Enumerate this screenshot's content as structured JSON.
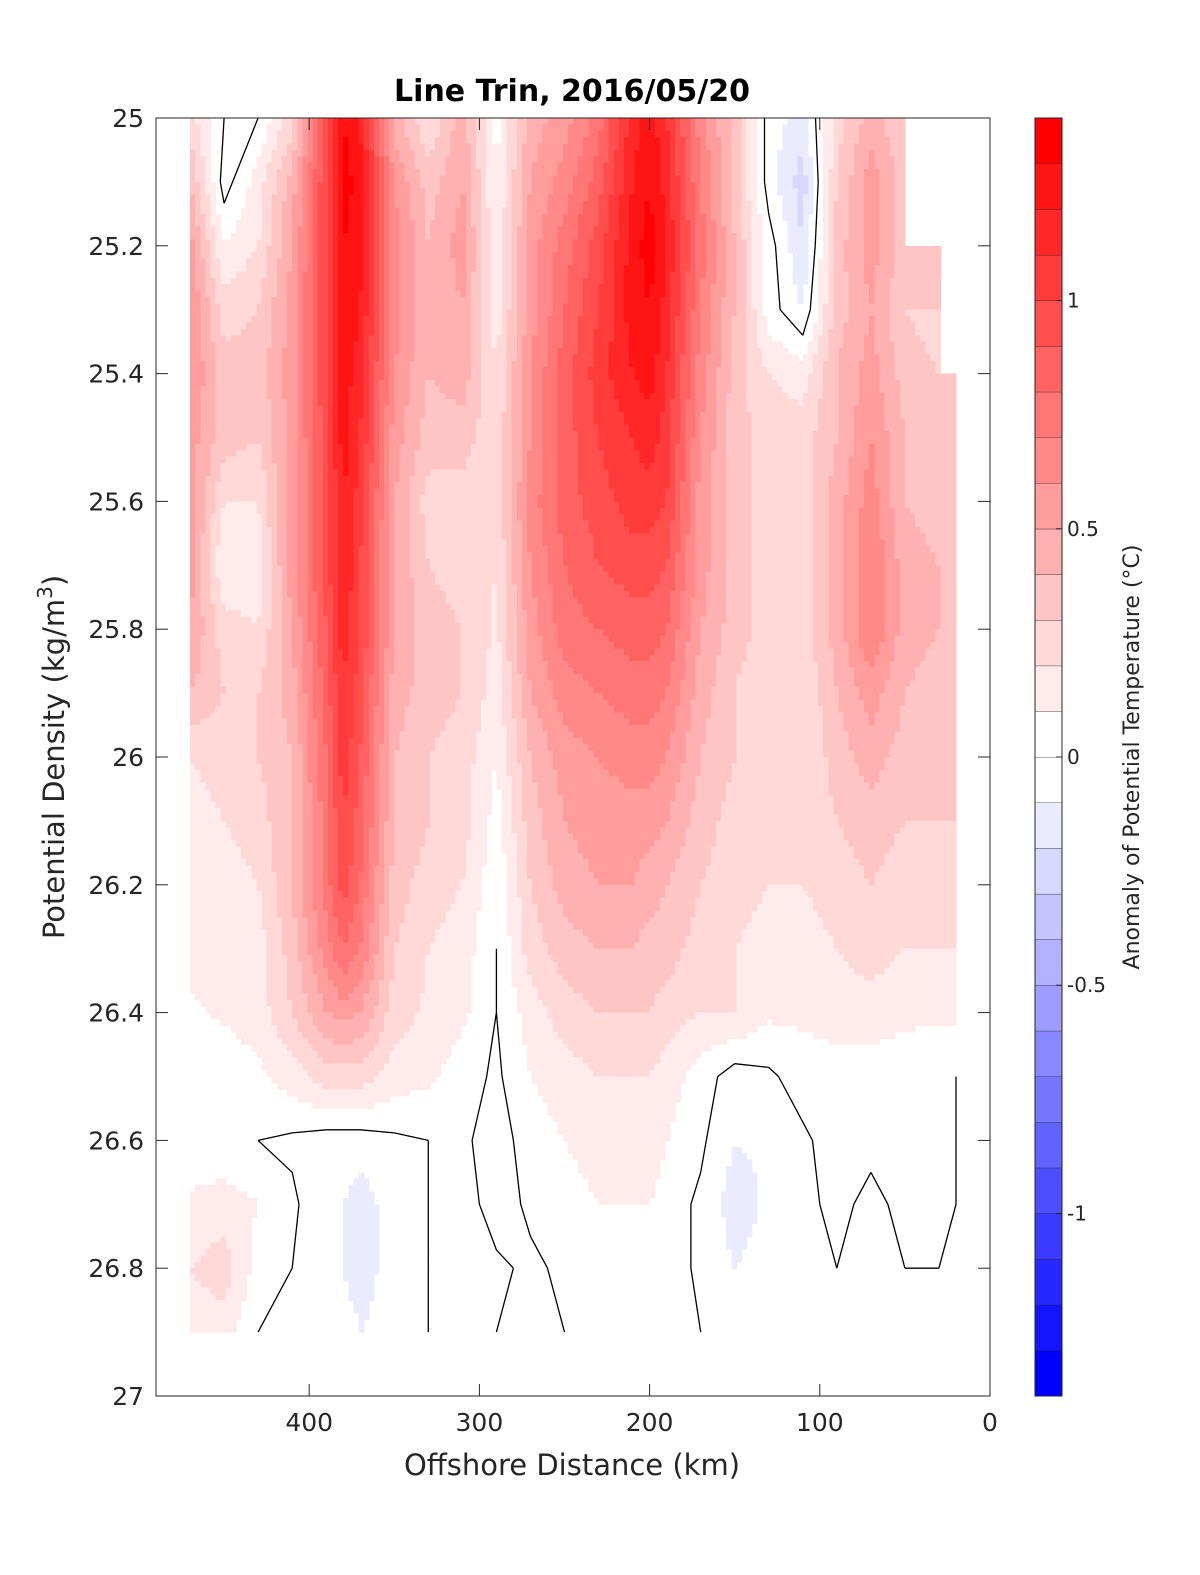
{
  "chart_data": {
    "type": "heatmap",
    "title": "Line Trin, 2016/05/20",
    "xlabel": "Offshore Distance (km)",
    "ylabel": "Potential Density (kg/m",
    "ylabel_sup": "3",
    "ylabel_end": ")",
    "colorbar_label": "Anomaly of Potential Temperature (°C)",
    "xlim": [
      490,
      0
    ],
    "x_reversed": true,
    "ylim": [
      25,
      27
    ],
    "y_reversed": true,
    "x_ticks": [
      400,
      300,
      200,
      100,
      0
    ],
    "x_tick_labels": [
      "400",
      "300",
      "200",
      "100",
      "0"
    ],
    "y_ticks": [
      25,
      25.2,
      25.4,
      25.6,
      25.8,
      26,
      26.2,
      26.4,
      26.6,
      26.8,
      27
    ],
    "y_tick_labels": [
      "25",
      "25.2",
      "25.4",
      "25.6",
      "25.8",
      "26",
      "26.2",
      "26.4",
      "26.6",
      "26.8",
      "27"
    ],
    "colorbar_range": [
      -1.4,
      1.4
    ],
    "colorbar_levels": 28,
    "colorbar_ticks": [
      1,
      0.5,
      0,
      -0.5,
      -1
    ],
    "colorbar_tick_labels": [
      "1",
      "0.5",
      "0",
      "-0.5",
      "-1"
    ],
    "colormap": {
      "negative": "#0000ff",
      "zero": "#ffffff",
      "positive": "#ff0000"
    },
    "zero_contour_color": "#000000",
    "grid": false,
    "data_x_range": [
      470,
      20
    ],
    "data_y_range": [
      25,
      26.9
    ],
    "field_x": [
      470,
      450,
      430,
      410,
      390,
      380,
      370,
      350,
      330,
      310,
      290,
      270,
      250,
      230,
      210,
      200,
      190,
      170,
      150,
      130,
      110,
      90,
      70,
      50,
      30,
      20
    ],
    "field_y": [
      25.0,
      25.1,
      25.2,
      25.3,
      25.4,
      25.5,
      25.6,
      25.7,
      25.8,
      25.9,
      26.0,
      26.1,
      26.2,
      26.3,
      26.4,
      26.5,
      26.6,
      26.7,
      26.8,
      26.9
    ],
    "field_values": [
      [
        0.25,
        0.0,
        0.0,
        0.25,
        0.95,
        1.3,
        1.2,
        0.45,
        0.2,
        0.45,
        0.05,
        0.45,
        0.55,
        0.75,
        1.15,
        1.25,
        1.1,
        0.65,
        0.35,
        -0.05,
        -0.15,
        0.25,
        0.45,
        0.3,
        null,
        null
      ],
      [
        0.4,
        -0.05,
        0.15,
        0.45,
        1.0,
        1.35,
        1.25,
        0.6,
        0.35,
        0.5,
        0.1,
        0.5,
        0.65,
        0.85,
        1.2,
        1.3,
        1.15,
        0.7,
        0.35,
        -0.05,
        -0.25,
        0.3,
        0.55,
        0.35,
        null,
        null
      ],
      [
        0.55,
        0.1,
        0.2,
        0.5,
        1.0,
        1.3,
        1.25,
        0.65,
        0.4,
        0.55,
        0.12,
        0.55,
        0.75,
        0.95,
        1.25,
        1.35,
        1.2,
        0.75,
        0.4,
        0.05,
        -0.2,
        0.35,
        0.55,
        0.35,
        null,
        null
      ],
      [
        0.6,
        0.25,
        0.3,
        0.55,
        1.0,
        1.3,
        1.2,
        0.65,
        0.4,
        0.5,
        0.15,
        0.55,
        0.8,
        1.0,
        1.25,
        1.3,
        1.15,
        0.7,
        0.4,
        0.05,
        -0.1,
        0.35,
        0.5,
        0.3,
        0.25,
        null
      ],
      [
        0.6,
        0.35,
        0.35,
        0.55,
        1.0,
        1.25,
        1.15,
        0.6,
        0.4,
        0.45,
        0.2,
        0.6,
        0.85,
        1.05,
        1.2,
        1.25,
        1.1,
        0.65,
        0.35,
        0.2,
        0.15,
        0.4,
        0.55,
        0.35,
        0.3,
        null
      ],
      [
        0.55,
        0.35,
        0.3,
        0.55,
        0.95,
        1.25,
        1.1,
        0.55,
        0.35,
        0.35,
        0.22,
        0.6,
        0.85,
        1.0,
        1.1,
        1.15,
        1.05,
        0.6,
        0.35,
        0.25,
        0.25,
        0.4,
        0.6,
        0.4,
        0.35,
        0.3
      ],
      [
        0.55,
        0.2,
        0.2,
        0.55,
        0.95,
        1.2,
        1.05,
        0.5,
        0.25,
        0.25,
        0.22,
        0.65,
        0.85,
        0.95,
        1.05,
        1.05,
        1.0,
        0.55,
        0.35,
        0.25,
        0.25,
        0.45,
        0.65,
        0.4,
        0.35,
        0.35
      ],
      [
        0.55,
        0.1,
        0.15,
        0.55,
        0.95,
        1.2,
        1.0,
        0.5,
        0.3,
        0.25,
        0.2,
        0.6,
        0.8,
        0.9,
        0.95,
        0.95,
        0.9,
        0.55,
        0.35,
        0.25,
        0.25,
        0.45,
        0.7,
        0.45,
        0.4,
        0.35
      ],
      [
        0.5,
        0.25,
        0.2,
        0.5,
        0.9,
        1.15,
        1.0,
        0.5,
        0.35,
        0.3,
        0.18,
        0.55,
        0.75,
        0.8,
        0.85,
        0.85,
        0.8,
        0.5,
        0.35,
        0.25,
        0.25,
        0.45,
        0.7,
        0.45,
        0.4,
        0.35
      ],
      [
        0.4,
        0.3,
        0.3,
        0.45,
        0.85,
        1.1,
        0.95,
        0.45,
        0.35,
        0.3,
        0.15,
        0.5,
        0.65,
        0.7,
        0.75,
        0.75,
        0.7,
        0.45,
        0.3,
        0.2,
        0.2,
        0.4,
        0.55,
        0.4,
        0.35,
        0.3
      ],
      [
        0.2,
        0.25,
        0.3,
        0.4,
        0.8,
        1.05,
        0.9,
        0.4,
        0.3,
        0.25,
        0.1,
        0.4,
        0.55,
        0.6,
        0.65,
        0.65,
        0.6,
        0.4,
        0.3,
        0.2,
        0.2,
        0.35,
        0.45,
        0.35,
        0.3,
        0.3
      ],
      [
        0.15,
        0.2,
        0.25,
        0.4,
        0.75,
        1.0,
        0.85,
        0.4,
        0.3,
        0.25,
        0.05,
        0.35,
        0.5,
        0.55,
        0.55,
        0.55,
        0.5,
        0.35,
        0.25,
        0.2,
        0.2,
        0.3,
        0.35,
        0.3,
        0.3,
        0.3
      ],
      [
        0.15,
        0.15,
        0.2,
        0.4,
        0.75,
        0.95,
        0.8,
        0.35,
        0.25,
        0.2,
        0.02,
        0.3,
        0.45,
        0.5,
        0.5,
        0.45,
        0.4,
        0.3,
        0.25,
        0.2,
        0.2,
        0.25,
        0.3,
        0.25,
        0.25,
        0.25
      ],
      [
        0.15,
        0.15,
        0.15,
        0.35,
        0.65,
        0.8,
        0.7,
        0.3,
        0.2,
        0.15,
        0.0,
        0.25,
        0.35,
        0.4,
        0.4,
        0.35,
        0.35,
        0.25,
        0.2,
        0.15,
        0.15,
        0.2,
        0.25,
        0.2,
        0.2,
        0.2
      ],
      [
        0.08,
        0.12,
        0.15,
        0.3,
        0.5,
        0.55,
        0.5,
        0.25,
        0.18,
        0.12,
        0.0,
        0.15,
        0.25,
        0.3,
        0.3,
        0.3,
        0.25,
        0.2,
        0.2,
        0.12,
        0.12,
        0.15,
        0.15,
        0.12,
        0.12,
        0.12
      ],
      [
        0.02,
        0.02,
        0.08,
        0.15,
        0.25,
        0.25,
        0.25,
        0.15,
        0.12,
        0.05,
        -0.02,
        0.1,
        0.15,
        0.2,
        0.2,
        0.2,
        0.15,
        0.05,
        -0.05,
        -0.02,
        0.05,
        0.05,
        0.05,
        0.05,
        0.02,
        0.0
      ],
      [
        0.02,
        0.02,
        0.0,
        -0.02,
        -0.05,
        -0.05,
        -0.05,
        -0.02,
        0.0,
        0.02,
        -0.05,
        0.05,
        0.1,
        0.15,
        0.15,
        0.15,
        0.1,
        0.02,
        -0.1,
        -0.08,
        -0.02,
        0.05,
        0.02,
        0.02,
        0.02,
        0.0
      ],
      [
        0.12,
        0.15,
        0.1,
        0.02,
        -0.08,
        -0.1,
        -0.15,
        -0.05,
        0.0,
        0.05,
        -0.05,
        0.02,
        0.05,
        0.1,
        0.1,
        0.1,
        0.05,
        -0.02,
        -0.15,
        -0.08,
        -0.02,
        0.02,
        -0.02,
        0.02,
        0.02,
        0.0
      ],
      [
        0.2,
        0.25,
        0.05,
        0.0,
        -0.05,
        -0.1,
        -0.15,
        -0.05,
        0.0,
        0.08,
        0.02,
        -0.02,
        0.02,
        0.05,
        0.05,
        0.05,
        0.05,
        -0.02,
        -0.1,
        -0.05,
        -0.02,
        0.0,
        0.0,
        0.0,
        0.0,
        -0.02
      ],
      [
        0.15,
        0.15,
        0.0,
        0.0,
        -0.02,
        -0.05,
        -0.1,
        -0.05,
        0.0,
        0.02,
        0.0,
        -0.02,
        0.0,
        0.02,
        0.02,
        0.02,
        0.02,
        0.0,
        -0.05,
        -0.02,
        0.0,
        0.0,
        0.0,
        0.0,
        0.0,
        0.0
      ]
    ]
  }
}
